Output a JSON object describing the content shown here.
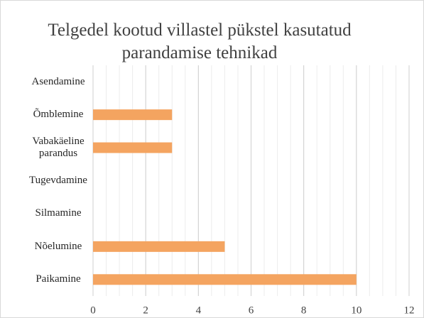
{
  "chart_data": {
    "type": "bar",
    "orientation": "horizontal",
    "title": "Telgedel kootud villastel pükstel kasutatud parandamise tehnikad",
    "categories": [
      "Asendamine",
      "Õmblemine",
      "Vabakäeline parandus",
      "Tugevdamine",
      "Silmamine",
      "Nõelumine",
      "Paikamine"
    ],
    "values": [
      0,
      3,
      3,
      0,
      0,
      5,
      10
    ],
    "color": "#f4a460",
    "xlim": [
      0,
      12
    ],
    "xticks": [
      0,
      2,
      4,
      6,
      8,
      10,
      12
    ],
    "grid": true,
    "minor_grid_step": 0.5
  }
}
